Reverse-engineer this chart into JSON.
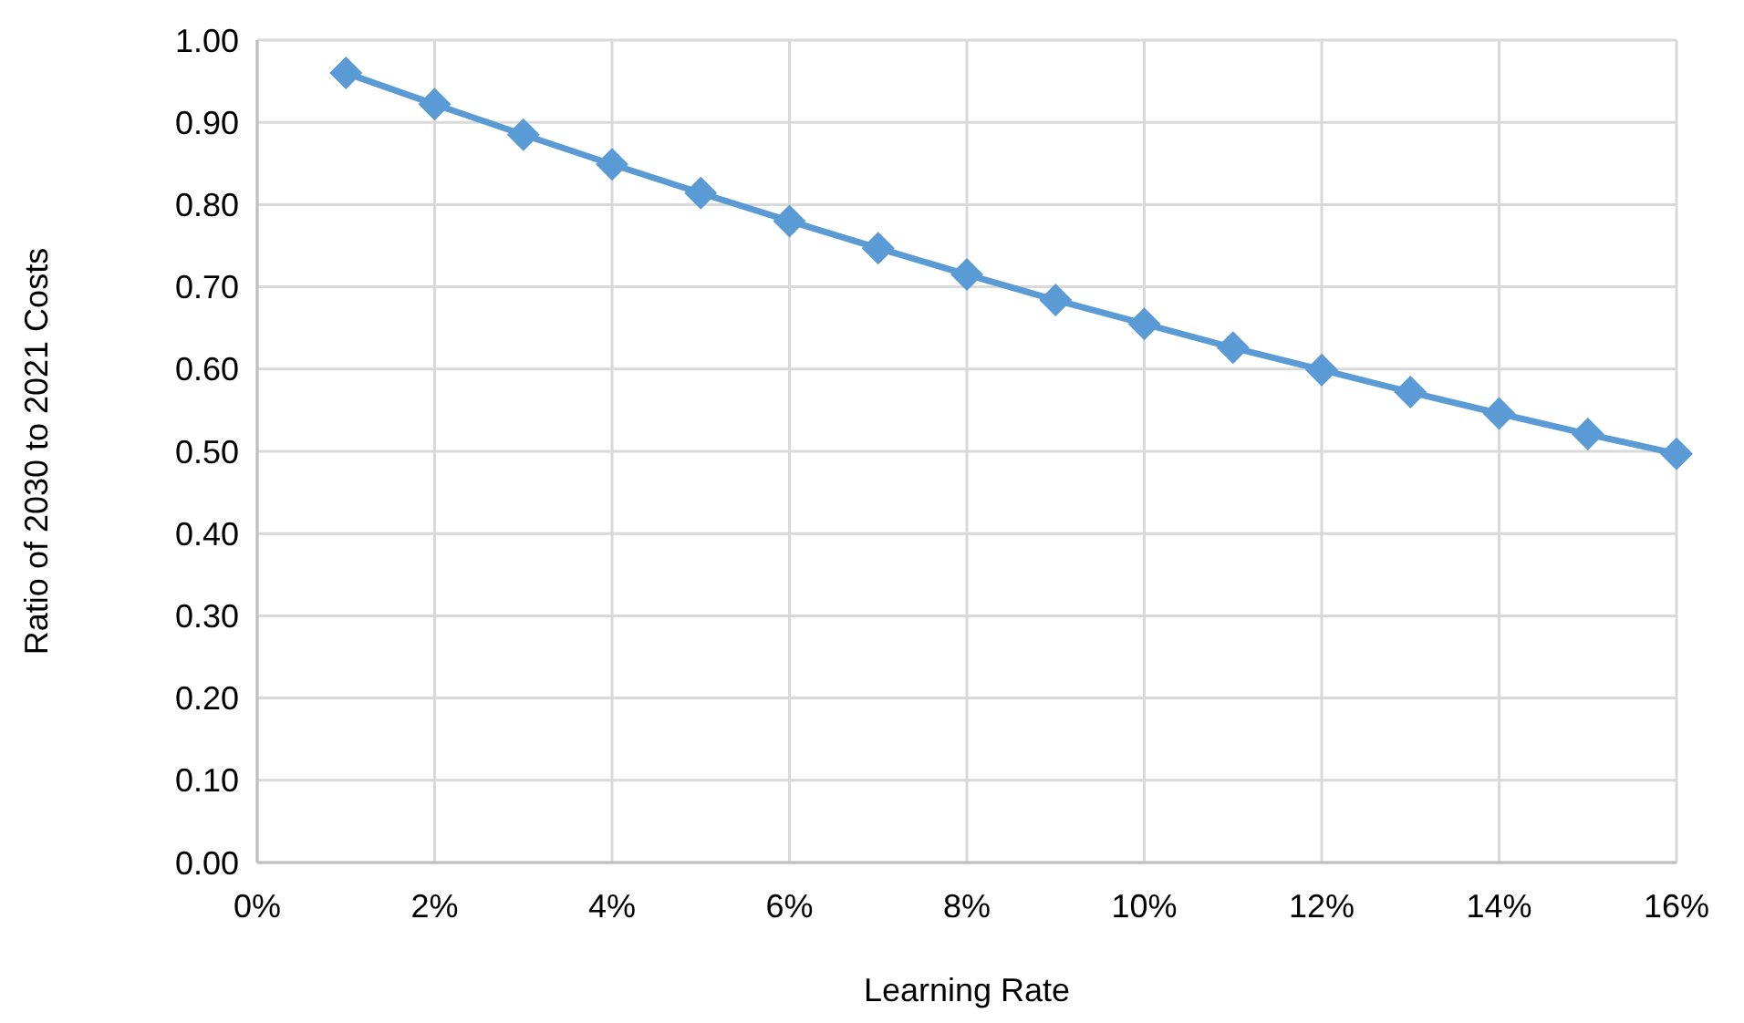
{
  "chart_data": {
    "type": "line",
    "xlabel": "Learning Rate",
    "ylabel": "Ratio of 2030 to 2021 Costs",
    "x": [
      1,
      2,
      3,
      4,
      5,
      6,
      7,
      8,
      9,
      10,
      11,
      12,
      13,
      14,
      15,
      16
    ],
    "series": [
      {
        "color": "#5b9bd5",
        "values": [
          0.96,
          0.922,
          0.885,
          0.849,
          0.814,
          0.78,
          0.747,
          0.715,
          0.684,
          0.655,
          0.626,
          0.599,
          0.572,
          0.546,
          0.521,
          0.497
        ]
      }
    ],
    "xlim": [
      0,
      16
    ],
    "xticks": [
      {
        "value": 0,
        "label": "0%"
      },
      {
        "value": 2,
        "label": "2%"
      },
      {
        "value": 4,
        "label": "4%"
      },
      {
        "value": 6,
        "label": "6%"
      },
      {
        "value": 8,
        "label": "8%"
      },
      {
        "value": 10,
        "label": "10%"
      },
      {
        "value": 12,
        "label": "12%"
      },
      {
        "value": 14,
        "label": "14%"
      },
      {
        "value": 16,
        "label": "16%"
      }
    ],
    "ylim": [
      0,
      1
    ],
    "yticks": [
      {
        "value": 0,
        "label": "0.00"
      },
      {
        "value": 0.1,
        "label": "0.10"
      },
      {
        "value": 0.2,
        "label": "0.20"
      },
      {
        "value": 0.3,
        "label": "0.30"
      },
      {
        "value": 0.4,
        "label": "0.40"
      },
      {
        "value": 0.5,
        "label": "0.50"
      },
      {
        "value": 0.6,
        "label": "0.60"
      },
      {
        "value": 0.7,
        "label": "0.70"
      },
      {
        "value": 0.8,
        "label": "0.80"
      },
      {
        "value": 0.9,
        "label": "0.90"
      },
      {
        "value": 1,
        "label": "1.00"
      }
    ],
    "grid": true,
    "marker": "diamond",
    "line_style": "solid"
  }
}
